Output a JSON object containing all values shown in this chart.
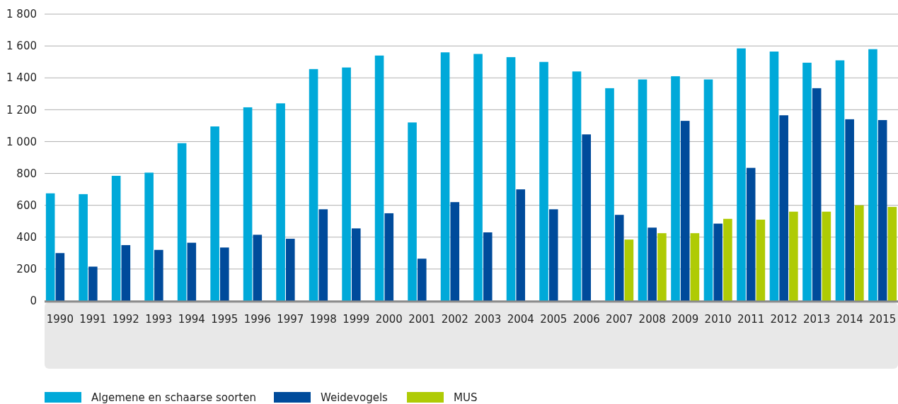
{
  "chart_data": {
    "type": "bar",
    "categories": [
      "1990",
      "1991",
      "1992",
      "1993",
      "1994",
      "1995",
      "1996",
      "1997",
      "1998",
      "1999",
      "2000",
      "2001",
      "2002",
      "2003",
      "2004",
      "2005",
      "2006",
      "2007",
      "2008",
      "2009",
      "2010",
      "2011",
      "2012",
      "2013",
      "2014",
      "2015"
    ],
    "series": [
      {
        "name": "Algemene en schaarse soorten",
        "color": "#00a9d9",
        "values": [
          675,
          670,
          785,
          805,
          990,
          1095,
          1215,
          1240,
          1455,
          1465,
          1540,
          1120,
          1560,
          1550,
          1530,
          1500,
          1440,
          1335,
          1390,
          1410,
          1390,
          1585,
          1565,
          1495,
          1510,
          1580
        ]
      },
      {
        "name": "Weidevogels",
        "color": "#004b9b",
        "values": [
          300,
          215,
          350,
          320,
          365,
          335,
          415,
          390,
          575,
          455,
          550,
          265,
          620,
          430,
          700,
          575,
          1045,
          540,
          460,
          1130,
          485,
          835,
          1165,
          1335,
          1140,
          1135
        ]
      },
      {
        "name": "MUS",
        "color": "#afcb05",
        "values": [
          null,
          null,
          null,
          null,
          null,
          null,
          null,
          null,
          null,
          null,
          null,
          null,
          null,
          null,
          null,
          null,
          null,
          385,
          425,
          425,
          515,
          510,
          560,
          560,
          600,
          590
        ]
      }
    ],
    "ylim": [
      0,
      1800
    ],
    "yticks": [
      {
        "value": 0,
        "label": "0"
      },
      {
        "value": 200,
        "label": "200"
      },
      {
        "value": 400,
        "label": "400"
      },
      {
        "value": 600,
        "label": "600"
      },
      {
        "value": 800,
        "label": "800"
      },
      {
        "value": 1000,
        "label": "1 000"
      },
      {
        "value": 1200,
        "label": "1 200"
      },
      {
        "value": 1400,
        "label": "1 400"
      },
      {
        "value": 1600,
        "label": "1 600"
      },
      {
        "value": 1800,
        "label": "1 800"
      }
    ],
    "grid": "y",
    "legend": "bottom"
  }
}
